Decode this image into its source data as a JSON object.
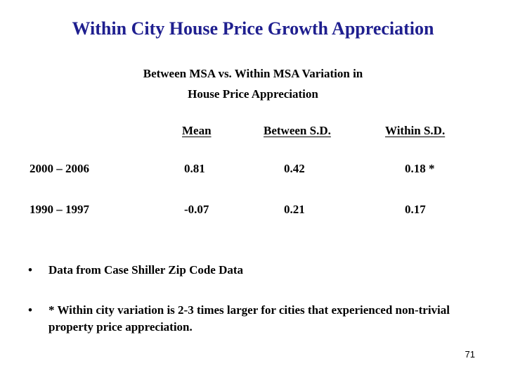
{
  "slide": {
    "title": "Within City House Price Growth Appreciation",
    "subtitle_line1": "Between MSA vs. Within MSA Variation in",
    "subtitle_line2": "House Price Appreciation",
    "title_color": "#1f1f8f",
    "page_number": "71"
  },
  "table": {
    "headers": [
      "Mean",
      "Between S.D.",
      "Within S.D."
    ],
    "rows": [
      {
        "label": "2000 – 2006",
        "mean": "0.81",
        "between_sd": "0.42",
        "within_sd": "0.18 *"
      },
      {
        "label": "1990 – 1997",
        "mean": "-0.07",
        "between_sd": "0.21",
        "within_sd": "0.17"
      }
    ]
  },
  "bullets": [
    {
      "mark": "•",
      "text": "Data from Case Shiller Zip Code Data"
    },
    {
      "mark": "•",
      "text": "* Within city variation is 2-3 times larger for cities that experienced non-trivial property price appreciation."
    }
  ]
}
